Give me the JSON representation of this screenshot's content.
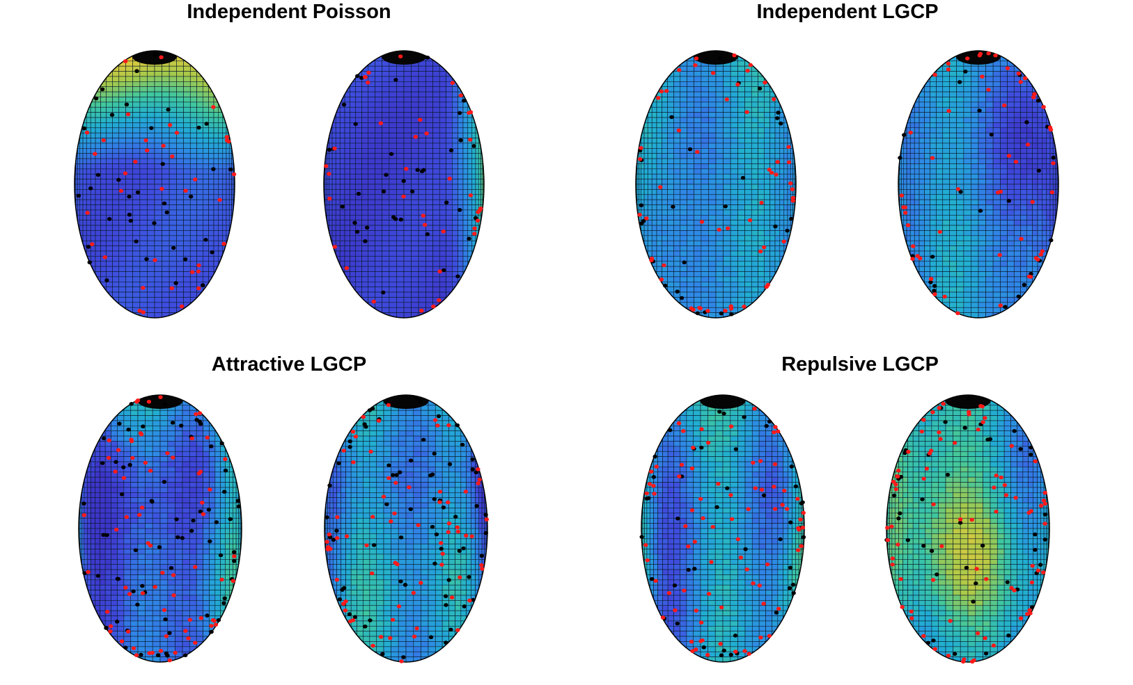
{
  "figure": {
    "panels": [
      {
        "id": "independent-poisson",
        "title": "Independent Poisson",
        "surfaces": [
          {
            "field_style": "smooth",
            "palette": [
              "#3d35c9",
              "#3f4fe0",
              "#2f88e6",
              "#21aed2",
              "#3fc79f",
              "#a6c94a",
              "#e6c93a"
            ],
            "hot_pole": "top",
            "red_points": 38,
            "black_points": 38,
            "seed": 11
          },
          {
            "field_style": "smooth",
            "palette": [
              "#3d35c9",
              "#3f4fe0",
              "#2f88e6",
              "#21aed2",
              "#3fc79f",
              "#a6c94a",
              "#e6c93a"
            ],
            "hot_pole": "right",
            "red_points": 38,
            "black_points": 38,
            "seed": 23
          }
        ]
      },
      {
        "id": "independent-lgcp",
        "title": "Independent LGCP",
        "surfaces": [
          {
            "field_style": "mottled",
            "palette": [
              "#3d35c9",
              "#3f4fe0",
              "#2f88e6",
              "#21aed2",
              "#3fc79f",
              "#a6c94a",
              "#e6c93a"
            ],
            "hot_pole": "none",
            "red_points": 55,
            "black_points": 28,
            "seed": 37
          },
          {
            "field_style": "mottled",
            "palette": [
              "#3d35c9",
              "#3f4fe0",
              "#2f88e6",
              "#21aed2",
              "#3fc79f",
              "#a6c94a",
              "#e6c93a"
            ],
            "hot_pole": "none",
            "red_points": 55,
            "black_points": 28,
            "seed": 41
          }
        ]
      },
      {
        "id": "attractive-lgcp",
        "title": "Attractive LGCP",
        "surfaces": [
          {
            "field_style": "striped-hot",
            "palette": [
              "#3d35c9",
              "#3f4fe0",
              "#2f88e6",
              "#21aed2",
              "#3fc79f",
              "#a6c94a",
              "#e6c93a"
            ],
            "hot_pole": "none",
            "red_points": 70,
            "black_points": 70,
            "seed": 53
          },
          {
            "field_style": "striped-hot",
            "palette": [
              "#3d35c9",
              "#3f4fe0",
              "#2f88e6",
              "#21aed2",
              "#3fc79f",
              "#a6c94a",
              "#e6c93a"
            ],
            "hot_pole": "none",
            "red_points": 70,
            "black_points": 70,
            "seed": 67
          }
        ]
      },
      {
        "id": "repulsive-lgcp",
        "title": "Repulsive LGCP",
        "surfaces": [
          {
            "field_style": "striped-hot",
            "palette": [
              "#3d35c9",
              "#3f4fe0",
              "#2f88e6",
              "#21aed2",
              "#3fc79f",
              "#a6c94a",
              "#e6c93a"
            ],
            "hot_pole": "none",
            "red_points": 80,
            "black_points": 45,
            "seed": 71
          },
          {
            "field_style": "mottled",
            "palette": [
              "#3d35c9",
              "#3f4fe0",
              "#2f88e6",
              "#21aed2",
              "#3fc79f",
              "#a6c94a",
              "#e6c93a"
            ],
            "hot_pole": "none",
            "red_points": 80,
            "black_points": 45,
            "seed": 89
          }
        ]
      }
    ],
    "point_colors": {
      "red": "#ff1a1a",
      "black": "#000000"
    },
    "mesh_color": "#0a1a2a"
  }
}
